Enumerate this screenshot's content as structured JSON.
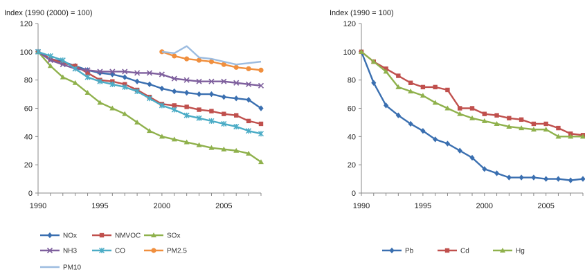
{
  "chart_data": [
    {
      "type": "line",
      "ylabel": "Index (1990 (2000) = 100)",
      "ylim": [
        0,
        120
      ],
      "yticks": [
        "0",
        "20",
        "40",
        "60",
        "80",
        "100",
        "120"
      ],
      "xlim": [
        1990,
        2008
      ],
      "xticks": [
        "1990",
        "1995",
        "2000",
        "2005"
      ],
      "grid": false,
      "legend_position": "bottom",
      "series": [
        {
          "name": "NOx",
          "color": "#3a6fb0",
          "marker": "diamond",
          "x": [
            1990,
            1991,
            1992,
            1993,
            1994,
            1995,
            1996,
            1997,
            1998,
            1999,
            2000,
            2001,
            2002,
            2003,
            2004,
            2005,
            2006,
            2007,
            2008
          ],
          "values": [
            100,
            95,
            93,
            90,
            87,
            85,
            84,
            82,
            79,
            77,
            74,
            72,
            71,
            70,
            70,
            68,
            67,
            66,
            60
          ]
        },
        {
          "name": "NMVOC",
          "color": "#c0504d",
          "marker": "square",
          "x": [
            1990,
            1991,
            1992,
            1993,
            1994,
            1995,
            1996,
            1997,
            1998,
            1999,
            2000,
            2001,
            2002,
            2003,
            2004,
            2005,
            2006,
            2007,
            2008
          ],
          "values": [
            100,
            95,
            92,
            90,
            85,
            80,
            79,
            77,
            73,
            68,
            63,
            62,
            61,
            59,
            58,
            56,
            55,
            51,
            49
          ]
        },
        {
          "name": "SOx",
          "color": "#8fb14c",
          "marker": "triangle",
          "x": [
            1990,
            1991,
            1992,
            1993,
            1994,
            1995,
            1996,
            1997,
            1998,
            1999,
            2000,
            2001,
            2002,
            2003,
            2004,
            2005,
            2006,
            2007,
            2008
          ],
          "values": [
            100,
            90,
            82,
            78,
            71,
            64,
            60,
            56,
            50,
            44,
            40,
            38,
            36,
            34,
            32,
            31,
            30,
            28,
            22
          ]
        },
        {
          "name": "NH3",
          "color": "#7e5f9d",
          "marker": "x",
          "x": [
            1990,
            1991,
            1992,
            1993,
            1994,
            1995,
            1996,
            1997,
            1998,
            1999,
            2000,
            2001,
            2002,
            2003,
            2004,
            2005,
            2006,
            2007,
            2008
          ],
          "values": [
            100,
            94,
            91,
            88,
            87,
            86,
            86,
            86,
            85,
            85,
            84,
            81,
            80,
            79,
            79,
            79,
            78,
            77,
            76
          ]
        },
        {
          "name": "CO",
          "color": "#4bacc6",
          "marker": "star",
          "x": [
            1990,
            1991,
            1992,
            1993,
            1994,
            1995,
            1996,
            1997,
            1998,
            1999,
            2000,
            2001,
            2002,
            2003,
            2004,
            2005,
            2006,
            2007,
            2008
          ],
          "values": [
            100,
            97,
            94,
            88,
            82,
            79,
            77,
            75,
            72,
            67,
            62,
            59,
            55,
            53,
            51,
            49,
            47,
            44,
            42
          ]
        },
        {
          "name": "PM2.5",
          "color": "#f08f3e",
          "marker": "circle",
          "x": [
            2000,
            2001,
            2002,
            2003,
            2004,
            2005,
            2006,
            2007,
            2008
          ],
          "values": [
            100,
            97,
            95,
            94,
            93,
            91,
            89,
            88,
            87
          ]
        },
        {
          "name": "PM10",
          "color": "#9cbce0",
          "marker": "line",
          "x": [
            2000,
            2001,
            2002,
            2003,
            2004,
            2005,
            2006,
            2007,
            2008
          ],
          "values": [
            100,
            99,
            104,
            96,
            95,
            93,
            91,
            92,
            93
          ]
        }
      ]
    },
    {
      "type": "line",
      "ylabel": "Index (1990 = 100)",
      "ylim": [
        0,
        120
      ],
      "yticks": [
        "0",
        "20",
        "40",
        "60",
        "80",
        "100",
        "120"
      ],
      "xlim": [
        1990,
        2008
      ],
      "xticks": [
        "1990",
        "1995",
        "2000",
        "2005"
      ],
      "grid": false,
      "legend_position": "bottom",
      "series": [
        {
          "name": "Pb",
          "color": "#3a6fb0",
          "marker": "diamond",
          "x": [
            1990,
            1991,
            1992,
            1993,
            1994,
            1995,
            1996,
            1997,
            1998,
            1999,
            2000,
            2001,
            2002,
            2003,
            2004,
            2005,
            2006,
            2007,
            2008
          ],
          "values": [
            100,
            78,
            62,
            55,
            49,
            44,
            38,
            35,
            30,
            25,
            17,
            14,
            11,
            11,
            11,
            10,
            10,
            9,
            10
          ]
        },
        {
          "name": "Cd",
          "color": "#c0504d",
          "marker": "square",
          "x": [
            1990,
            1991,
            1992,
            1993,
            1994,
            1995,
            1996,
            1997,
            1998,
            1999,
            2000,
            2001,
            2002,
            2003,
            2004,
            2005,
            2006,
            2007,
            2008
          ],
          "values": [
            100,
            93,
            88,
            83,
            78,
            75,
            75,
            73,
            60,
            60,
            56,
            55,
            53,
            52,
            49,
            49,
            46,
            42,
            41
          ]
        },
        {
          "name": "Hg",
          "color": "#8fb14c",
          "marker": "triangle",
          "x": [
            1990,
            1991,
            1992,
            1993,
            1994,
            1995,
            1996,
            1997,
            1998,
            1999,
            2000,
            2001,
            2002,
            2003,
            2004,
            2005,
            2006,
            2007,
            2008
          ],
          "values": [
            100,
            93,
            86,
            75,
            72,
            69,
            64,
            60,
            56,
            53,
            51,
            49,
            47,
            46,
            45,
            45,
            40,
            40,
            40
          ]
        }
      ]
    }
  ]
}
